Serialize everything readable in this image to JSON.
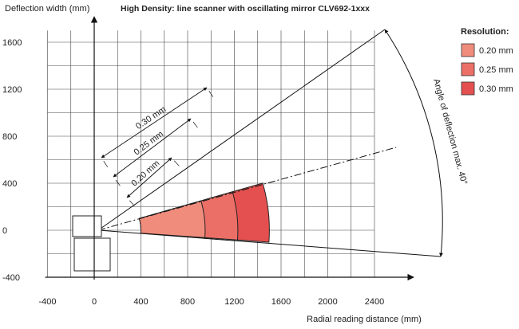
{
  "chart_data": {
    "type": "area",
    "title": "High Density: line scanner with oscillating mirror CLV692-1xxx",
    "xlabel": "Radial reading distance (mm)",
    "ylabel": "Deflection width (mm)",
    "xlim": [
      -400,
      2600
    ],
    "ylim": [
      -400,
      1600
    ],
    "x_ticks": [
      "-400",
      "0",
      "400",
      "800",
      "1200",
      "1600",
      "2000",
      "2400"
    ],
    "y_ticks": [
      "1600",
      "1200",
      "800",
      "400",
      "0",
      "-400"
    ],
    "grid": true,
    "legend_title": "Resolution:",
    "legend_position": "top-right",
    "series": [
      {
        "name": "0.20 mm",
        "color": "#f08c7c",
        "near_mm": 400,
        "far_mm": 950
      },
      {
        "name": "0.25 mm",
        "color": "#eb6f66",
        "near_mm": 400,
        "far_mm": 1230
      },
      {
        "name": "0.30 mm",
        "color": "#e4504f",
        "near_mm": 400,
        "far_mm": 1500
      }
    ],
    "annotations": {
      "range_labels": [
        "0.30 mm",
        "0.25 mm",
        "0.20 mm"
      ],
      "angle_label": "Angle of deflection max. 40°"
    }
  }
}
